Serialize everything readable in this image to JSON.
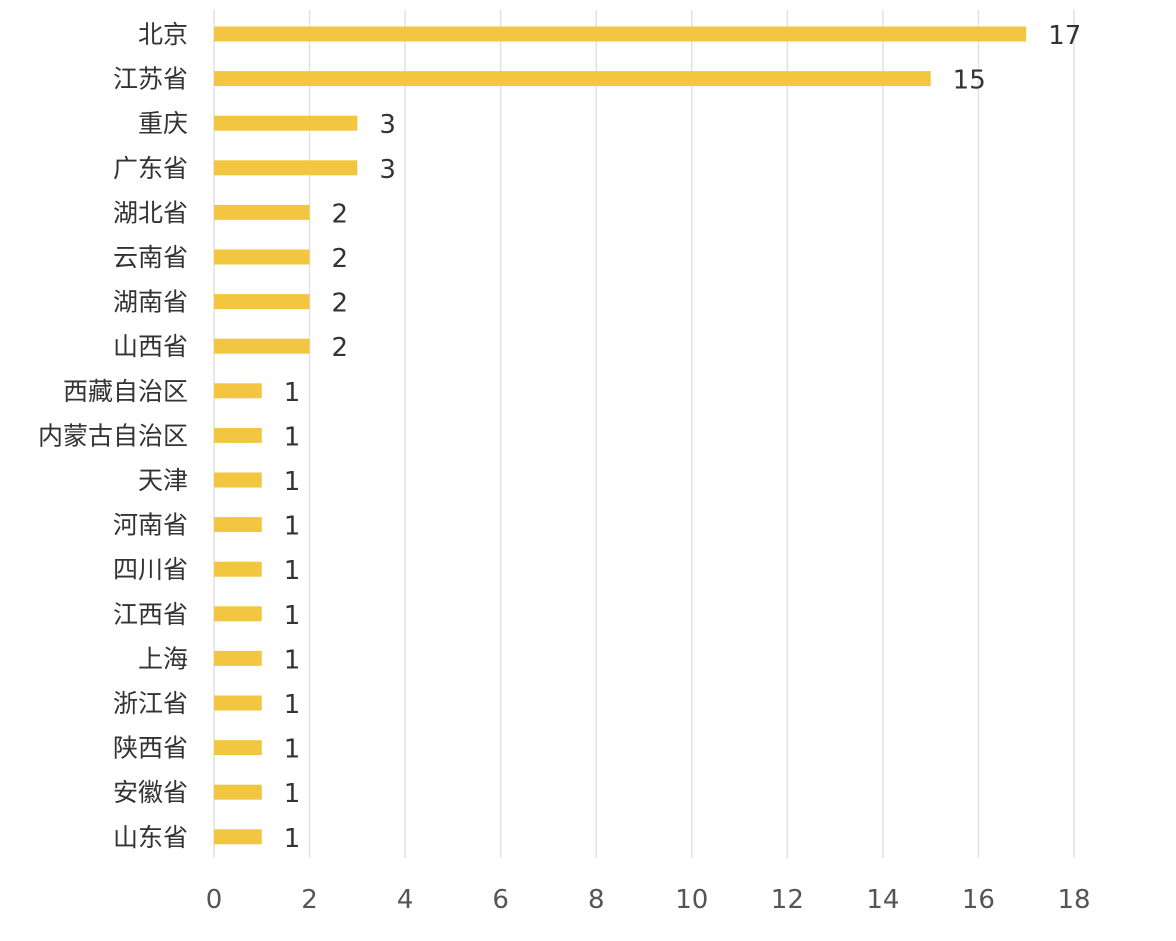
{
  "chart_data": {
    "type": "bar",
    "orientation": "horizontal",
    "categories": [
      "北京",
      "江苏省",
      "重庆",
      "广东省",
      "湖北省",
      "云南省",
      "湖南省",
      "山西省",
      "西藏自治区",
      "内蒙古自治区",
      "天津",
      "河南省",
      "四川省",
      "江西省",
      "上海",
      "浙江省",
      "陕西省",
      "安徽省",
      "山东省"
    ],
    "values": [
      17,
      15,
      3,
      3,
      2,
      2,
      2,
      2,
      1,
      1,
      1,
      1,
      1,
      1,
      1,
      1,
      1,
      1,
      1
    ],
    "xticks": [
      0,
      2,
      4,
      6,
      8,
      10,
      12,
      14,
      16,
      18
    ],
    "xlim": [
      0,
      18
    ],
    "grid": "vertical",
    "data_labels": true,
    "title": "",
    "xlabel": "",
    "ylabel": "",
    "colors": {
      "bar": "#F2C641",
      "grid": "#E2E2E2",
      "text": "#333333",
      "tick_text": "#555555"
    }
  }
}
